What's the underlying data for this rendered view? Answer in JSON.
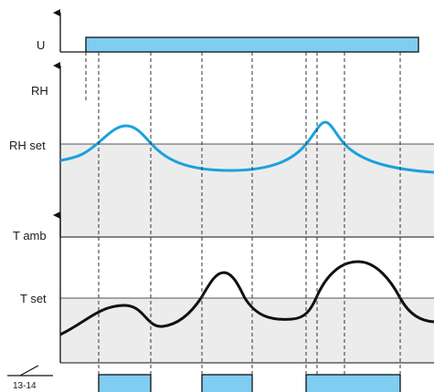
{
  "labels": {
    "supply": "U",
    "humidity": "RH",
    "humidity_setpoint": "RH set",
    "ambient_temp": "T amb",
    "temp_setpoint": "T set",
    "relay_contact": "13-14"
  },
  "colors": {
    "supply_bar": "#7fcdf0",
    "humidity_curve": "#1ba1dc",
    "temp_curve": "#111111",
    "below_setpoint_fill": "#ececec",
    "relay_pulse": "#7fcdf0",
    "axis": "#111111",
    "guide_dash": "#333333"
  }
}
